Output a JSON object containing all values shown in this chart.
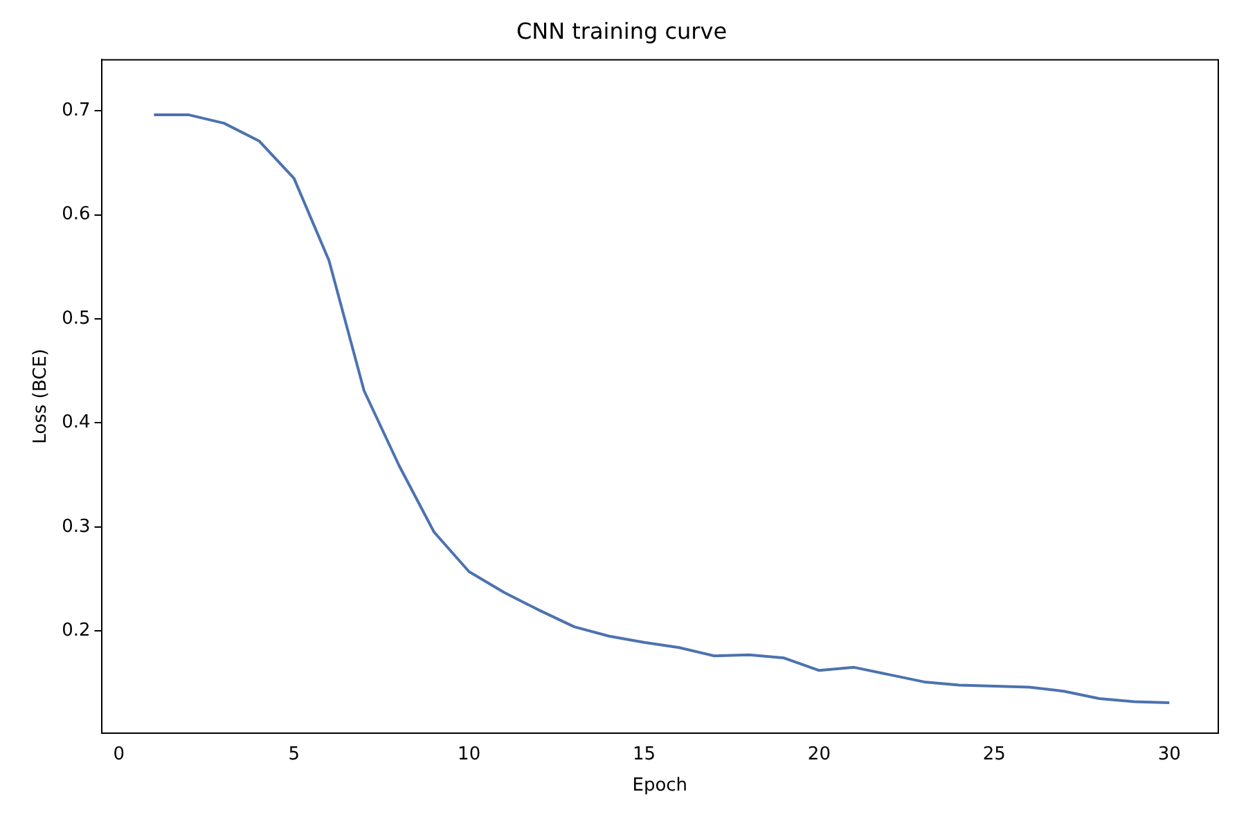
{
  "chart_data": {
    "type": "line",
    "title": "CNN training curve",
    "xlabel": "Epoch",
    "ylabel": "Loss (BCE)",
    "x": [
      1,
      2,
      3,
      4,
      5,
      6,
      7,
      8,
      9,
      10,
      11,
      12,
      13,
      14,
      15,
      16,
      17,
      18,
      19,
      20,
      21,
      22,
      23,
      24,
      25,
      26,
      27,
      28,
      29,
      30
    ],
    "series": [
      {
        "color": "#4c72b0",
        "values": [
          0.696,
          0.696,
          0.688,
          0.671,
          0.635,
          0.556,
          0.431,
          0.359,
          0.295,
          0.257,
          0.237,
          0.22,
          0.204,
          0.195,
          0.189,
          0.184,
          0.176,
          0.177,
          0.174,
          0.162,
          0.165,
          0.158,
          0.151,
          0.148,
          0.147,
          0.146,
          0.142,
          0.135,
          0.132,
          0.131
        ]
      }
    ],
    "xlim": [
      -0.5,
      31.4
    ],
    "xticks": [
      0,
      5,
      10,
      15,
      20,
      25,
      30
    ],
    "ylim": [
      0.102,
      0.749
    ],
    "yticks": [
      0.2,
      0.3,
      0.4,
      0.5,
      0.6,
      0.7
    ],
    "grid": false,
    "legend": false,
    "marker": "none",
    "line_style": "solid"
  }
}
